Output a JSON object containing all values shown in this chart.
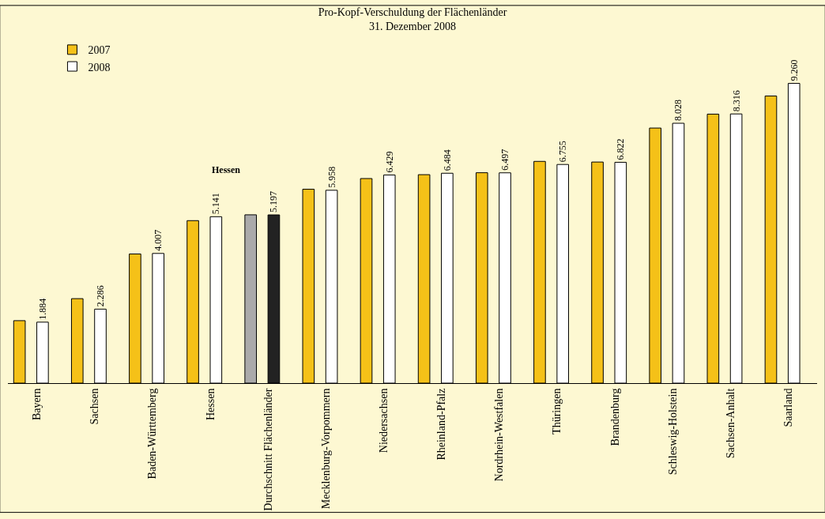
{
  "chart_data": {
    "type": "bar",
    "title": "Pro-Kopf-Verschuldung der Flächenländer",
    "subtitle": "31. Dezember 2008",
    "categories": [
      "Bayern",
      "Sachsen",
      "Baden-Württemberg",
      "Hessen",
      "Durchschnitt Flächenländer",
      "Mecklenburg-Vorpommern",
      "Niedersachsen",
      "Rheinland-Pfalz",
      "Nordrhein-Westfalen",
      "Thüringen",
      "Brandenburg",
      "Schleswig-Holstein",
      "Sachsen-Anhalt",
      "Saarland"
    ],
    "series": [
      {
        "name": "2007",
        "color": "#f5c118",
        "colors": [
          "#f5c118",
          "#f5c118",
          "#f5c118",
          "#f5c118",
          "#aaaaaa",
          "#f5c118",
          "#f5c118",
          "#f5c118",
          "#f5c118",
          "#f5c118",
          "#f5c118",
          "#f5c118",
          "#f5c118",
          "#f5c118"
        ],
        "values": [
          1.93,
          2.61,
          3.99,
          5.02,
          5.2,
          5.99,
          6.32,
          6.44,
          6.5,
          6.85,
          6.83,
          7.88,
          8.31,
          8.87
        ]
      },
      {
        "name": "2008",
        "color": "#ffffff",
        "colors": [
          "#ffffff",
          "#ffffff",
          "#ffffff",
          "#ffffff",
          "#222222",
          "#ffffff",
          "#ffffff",
          "#ffffff",
          "#ffffff",
          "#ffffff",
          "#ffffff",
          "#ffffff",
          "#ffffff",
          "#ffffff"
        ],
        "values": [
          1.884,
          2.286,
          4.007,
          5.141,
          5.197,
          5.958,
          6.429,
          6.484,
          6.497,
          6.755,
          6.822,
          8.028,
          8.316,
          9.26
        ],
        "value_labels": [
          "1.884",
          "2.286",
          "4.007",
          "5.141",
          "5.197",
          "5.958",
          "6.429",
          "6.484",
          "6.497",
          "6.755",
          "6.822",
          "8.028",
          "8.316",
          "9.260"
        ]
      }
    ],
    "annotations": [
      "Hessen"
    ],
    "legend": "top left",
    "grid": false
  }
}
